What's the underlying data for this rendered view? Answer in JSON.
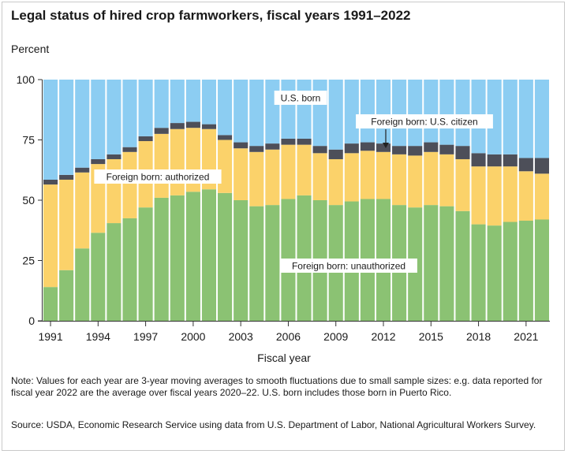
{
  "title": "Legal status of hired crop farmworkers, fiscal years 1991–2022",
  "y_unit_label": "Percent",
  "x_axis_title": "Fiscal year",
  "note": "Note: Values for each year are 3-year moving averages to smooth fluctuations due to small sample sizes: e.g. data reported for fiscal year 2022 are the average over fiscal years 2020–22. U.S. born includes those born in Puerto Rico.",
  "source": "Source: USDA, Economic Research Service using data from U.S. Department of Labor, National Agricultural Workers Survey.",
  "chart_data": {
    "type": "bar",
    "stacked": true,
    "categories": [
      "1991",
      "1992",
      "1993",
      "1994",
      "1995",
      "1996",
      "1997",
      "1998",
      "1999",
      "2000",
      "2001",
      "2002",
      "2003",
      "2004",
      "2005",
      "2006",
      "2007",
      "2008",
      "2009",
      "2010",
      "2011",
      "2012",
      "2013",
      "2014",
      "2015",
      "2016",
      "2017",
      "2018",
      "2019",
      "2020",
      "2021",
      "2022"
    ],
    "x_tick_labels": [
      "1991",
      "1994",
      "1997",
      "2000",
      "2003",
      "2006",
      "2009",
      "2012",
      "2015",
      "2018",
      "2021"
    ],
    "y_ticks": [
      0,
      25,
      50,
      75,
      100
    ],
    "ylim": [
      0,
      100
    ],
    "xlabel": "Fiscal year",
    "ylabel": "Percent",
    "series": [
      {
        "name": "Foreign born: unauthorized",
        "color": "#8bc273",
        "values": [
          14,
          21,
          30,
          36.5,
          40.5,
          42.5,
          47,
          51,
          52,
          53.5,
          54.5,
          53,
          50,
          47.5,
          48,
          50.5,
          52,
          50,
          48,
          49.5,
          50.5,
          50.5,
          48,
          47,
          48,
          47.5,
          45.5,
          40,
          39.5,
          41,
          41.5,
          42
        ]
      },
      {
        "name": "Foreign born: authorized",
        "color": "#fbd26a",
        "values": [
          42.5,
          37.5,
          31.5,
          28.5,
          26.5,
          27.5,
          27.5,
          26.5,
          27.5,
          26.5,
          25,
          22,
          21.5,
          22.5,
          23,
          22.5,
          21,
          19.5,
          19,
          20,
          20,
          19.5,
          21,
          21.5,
          22,
          21.5,
          21.5,
          24,
          24.5,
          23,
          20.5,
          19
        ]
      },
      {
        "name": "Foreign born: U.S. citizen",
        "color": "#4d4f59",
        "values": [
          2,
          2,
          2,
          2,
          2,
          2,
          2,
          2.5,
          2.5,
          2.5,
          2,
          2,
          2.5,
          2.5,
          2.5,
          2.5,
          2.5,
          3,
          4,
          4,
          3.5,
          3.5,
          3.5,
          4,
          4,
          4,
          5.5,
          5.5,
          5,
          5,
          5.5,
          6.5
        ]
      },
      {
        "name": "U.S. born",
        "color": "#8ccdf2",
        "values": [
          41.5,
          39.5,
          36.5,
          33,
          31,
          28,
          23.5,
          20,
          18,
          17.5,
          18.5,
          23,
          26,
          27.5,
          26.5,
          24.5,
          24.5,
          27.5,
          29,
          26.5,
          26,
          26.5,
          27.5,
          27.5,
          26,
          27,
          27.5,
          30.5,
          31,
          31,
          32.5,
          32.5
        ]
      }
    ],
    "annotations": [
      {
        "text": "U.S. born"
      },
      {
        "text": "Foreign born: U.S. citizen"
      },
      {
        "text": "Foreign born: authorized"
      },
      {
        "text": "Foreign born: unauthorized"
      }
    ],
    "grid": false,
    "legend": "none (inline labels)"
  }
}
